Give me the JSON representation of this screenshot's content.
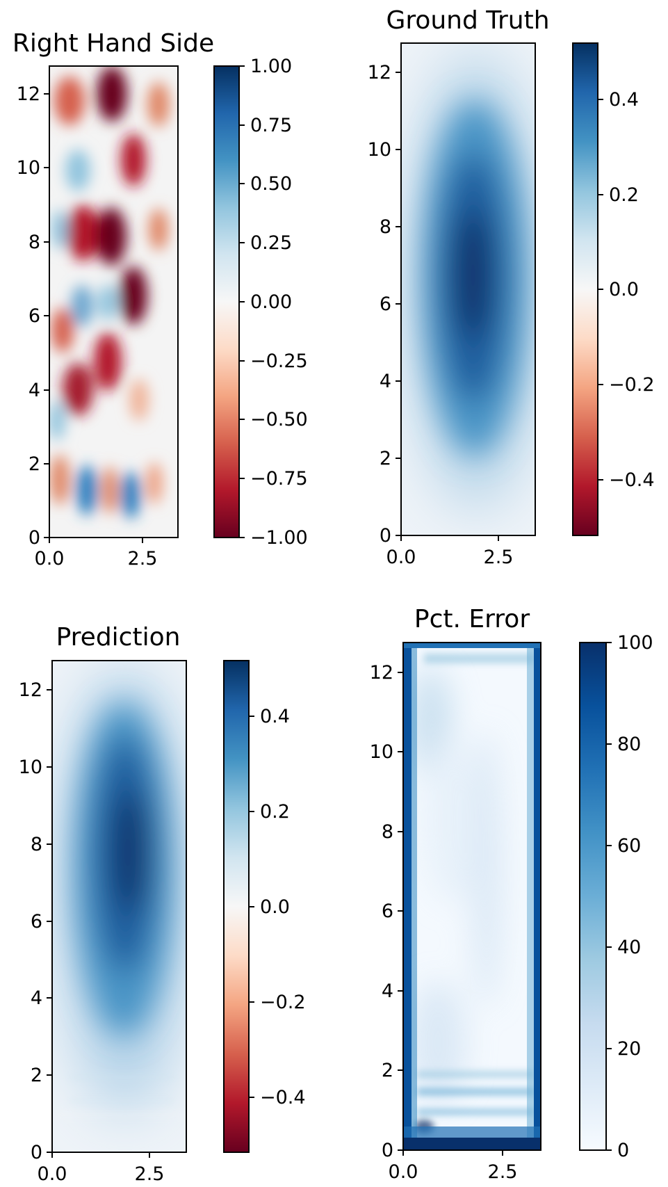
{
  "figure": {
    "panels": [
      {
        "id": "rhs",
        "title": "Right Hand Side",
        "colormap": "RdBu",
        "colors": [
          "#67001f",
          "#b2182b",
          "#d6604d",
          "#f4a582",
          "#fddbc7",
          "#f7f7f7",
          "#d1e5f0",
          "#92c5de",
          "#4393c3",
          "#2166ac",
          "#053061"
        ],
        "clim": [
          -1.0,
          1.0
        ],
        "xlim": [
          0,
          3.45
        ],
        "ylim": [
          0,
          12.75
        ],
        "xticks": [
          0.0,
          2.5
        ],
        "xtick_labels": [
          "0.0",
          "2.5"
        ],
        "yticks": [
          0,
          2,
          4,
          6,
          8,
          10,
          12
        ],
        "ytick_labels": [
          "0",
          "2",
          "4",
          "6",
          "8",
          "10",
          "12"
        ],
        "cbar_ticks": [
          1.0,
          0.75,
          0.5,
          0.25,
          0.0,
          -0.25,
          -0.5,
          -0.75,
          -1.0
        ],
        "cbar_tick_labels": [
          "1.00",
          "0.75",
          "0.50",
          "0.25",
          "0.00",
          "−0.25",
          "−0.50",
          "−0.75",
          "−1.00"
        ]
      },
      {
        "id": "truth",
        "title": "Ground Truth",
        "colormap": "RdBu",
        "colors": [
          "#67001f",
          "#b2182b",
          "#d6604d",
          "#f4a582",
          "#fddbc7",
          "#f7f7f7",
          "#d1e5f0",
          "#92c5de",
          "#4393c3",
          "#2166ac",
          "#053061"
        ],
        "clim": [
          -0.5,
          0.5
        ],
        "xlim": [
          0,
          3.45
        ],
        "ylim": [
          0,
          12.75
        ],
        "xticks": [
          0.0,
          2.5
        ],
        "xtick_labels": [
          "0.0",
          "2.5"
        ],
        "yticks": [
          0,
          2,
          4,
          6,
          8,
          10,
          12
        ],
        "ytick_labels": [
          "0",
          "2",
          "4",
          "6",
          "8",
          "10",
          "12"
        ],
        "cbar_ticks": [
          0.4,
          0.2,
          0.0,
          -0.2,
          -0.4
        ],
        "cbar_tick_labels": [
          "0.4",
          "0.2",
          "0.0",
          "−0.2",
          "−0.4"
        ]
      },
      {
        "id": "pred",
        "title": "Prediction",
        "colormap": "RdBu",
        "colors": [
          "#67001f",
          "#b2182b",
          "#d6604d",
          "#f4a582",
          "#fddbc7",
          "#f7f7f7",
          "#d1e5f0",
          "#92c5de",
          "#4393c3",
          "#2166ac",
          "#053061"
        ],
        "clim": [
          -0.5,
          0.5
        ],
        "xlim": [
          0,
          3.45
        ],
        "ylim": [
          0,
          12.75
        ],
        "xticks": [
          0.0,
          2.5
        ],
        "xtick_labels": [
          "0.0",
          "2.5"
        ],
        "yticks": [
          0,
          2,
          4,
          6,
          8,
          10,
          12
        ],
        "ytick_labels": [
          "0",
          "2",
          "4",
          "6",
          "8",
          "10",
          "12"
        ],
        "cbar_ticks": [
          0.4,
          0.2,
          0.0,
          -0.2,
          -0.4
        ],
        "cbar_tick_labels": [
          "0.4",
          "0.2",
          "0.0",
          "−0.2",
          "−0.4"
        ]
      },
      {
        "id": "err",
        "title": "Pct. Error",
        "colormap": "Blues",
        "colors": [
          "#f7fbff",
          "#deebf7",
          "#c6dbef",
          "#9ecae1",
          "#6baed6",
          "#4292c6",
          "#2171b5",
          "#08519c",
          "#08306b"
        ],
        "clim": [
          0,
          100
        ],
        "xlim": [
          0,
          3.45
        ],
        "ylim": [
          0,
          12.75
        ],
        "xticks": [
          0.0,
          2.5
        ],
        "xtick_labels": [
          "0.0",
          "2.5"
        ],
        "yticks": [
          0,
          2,
          4,
          6,
          8,
          10,
          12
        ],
        "ytick_labels": [
          "0",
          "2",
          "4",
          "6",
          "8",
          "10",
          "12"
        ],
        "cbar_ticks": [
          100,
          80,
          60,
          40,
          20,
          0
        ],
        "cbar_tick_labels": [
          "100",
          "80",
          "60",
          "40",
          "20",
          "0"
        ]
      }
    ]
  },
  "chart_data": [
    {
      "type": "heatmap",
      "title": "Right Hand Side",
      "xlabel": "",
      "ylabel": "",
      "xlim": [
        0,
        3.45
      ],
      "ylim": [
        0,
        12.75
      ],
      "colorbar_range": [
        -1.0,
        1.0
      ],
      "grid": false,
      "field_description_values": [
        {
          "x": 1.6,
          "y": 11.8,
          "value": -1.0
        },
        {
          "x": 0.8,
          "y": 10.7,
          "value": 0.25
        },
        {
          "x": 1.6,
          "y": 8.2,
          "value": -1.0
        },
        {
          "x": 2.2,
          "y": 6.5,
          "value": -1.0
        },
        {
          "x": 0.8,
          "y": 6.0,
          "value": 0.5
        },
        {
          "x": 0.8,
          "y": 3.8,
          "value": -1.0
        },
        {
          "x": 0.9,
          "y": 1.2,
          "value": 0.75
        },
        {
          "x": 2.1,
          "y": 1.0,
          "value": 0.75
        }
      ]
    },
    {
      "type": "heatmap",
      "title": "Ground Truth",
      "xlabel": "",
      "ylabel": "",
      "xlim": [
        0,
        3.45
      ],
      "ylim": [
        0,
        12.75
      ],
      "colorbar_range": [
        -0.5,
        0.5
      ],
      "grid": false,
      "peak": {
        "x": 2.0,
        "y": 7.0,
        "value": 0.5
      }
    },
    {
      "type": "heatmap",
      "title": "Prediction",
      "xlabel": "",
      "ylabel": "",
      "xlim": [
        0,
        3.45
      ],
      "ylim": [
        0,
        12.75
      ],
      "colorbar_range": [
        -0.5,
        0.5
      ],
      "grid": false,
      "peak": {
        "x": 2.1,
        "y": 7.0,
        "value": 0.5
      }
    },
    {
      "type": "heatmap",
      "title": "Pct. Error",
      "xlabel": "",
      "ylabel": "",
      "xlim": [
        0,
        3.45
      ],
      "ylim": [
        0,
        12.75
      ],
      "colorbar_range": [
        0,
        100
      ],
      "grid": false,
      "high_error_regions": [
        "left edge",
        "right edge",
        "bottom edge",
        "top edge"
      ]
    }
  ]
}
